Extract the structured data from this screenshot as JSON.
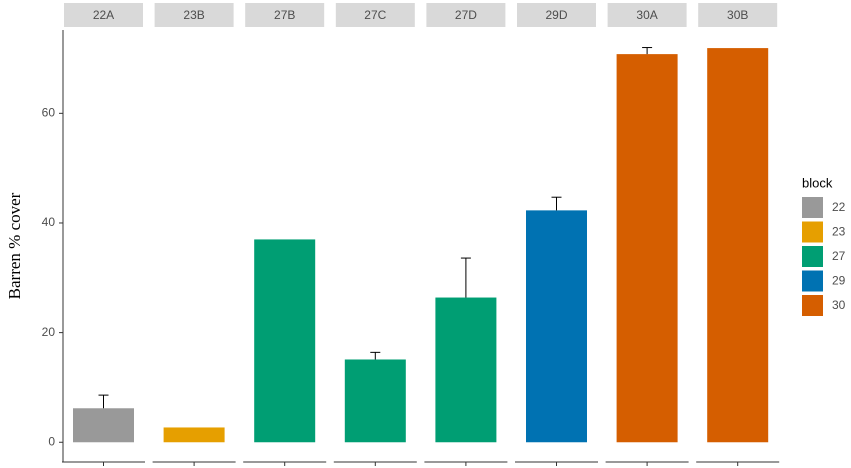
{
  "chart_data": {
    "type": "bar",
    "y_label": "Barren % cover",
    "categories": [
      "22A",
      "23B",
      "27B",
      "27C",
      "27D",
      "29D",
      "30A",
      "30B"
    ],
    "ylim": [
      -3.6,
      75.2
    ],
    "yticks": [
      0,
      20,
      40,
      60
    ],
    "grid": false,
    "legend_title": "block",
    "legend_position": "right",
    "series": [
      {
        "name": "22",
        "color": "#999999",
        "values": [
          6.2,
          null,
          null,
          null,
          null,
          null,
          null,
          null
        ],
        "errors": [
          2.4,
          null,
          null,
          null,
          null,
          null,
          null,
          null
        ]
      },
      {
        "name": "23",
        "color": "#E69F00",
        "values": [
          null,
          2.7,
          null,
          null,
          null,
          null,
          null,
          null
        ],
        "errors": [
          null,
          null,
          null,
          null,
          null,
          null,
          null,
          null
        ]
      },
      {
        "name": "27",
        "color": "#009E73",
        "values": [
          null,
          null,
          37.0,
          15.1,
          26.4,
          null,
          null,
          null
        ],
        "errors": [
          null,
          null,
          null,
          1.3,
          7.2,
          null,
          null,
          null
        ]
      },
      {
        "name": "29",
        "color": "#0072B2",
        "values": [
          null,
          null,
          null,
          null,
          null,
          42.3,
          null,
          null
        ],
        "errors": [
          null,
          null,
          null,
          null,
          null,
          2.4,
          null,
          null
        ]
      },
      {
        "name": "30",
        "color": "#D55E00",
        "values": [
          null,
          null,
          null,
          null,
          null,
          null,
          70.8,
          71.9
        ],
        "errors": [
          null,
          null,
          null,
          null,
          null,
          null,
          1.2,
          null
        ]
      }
    ]
  }
}
